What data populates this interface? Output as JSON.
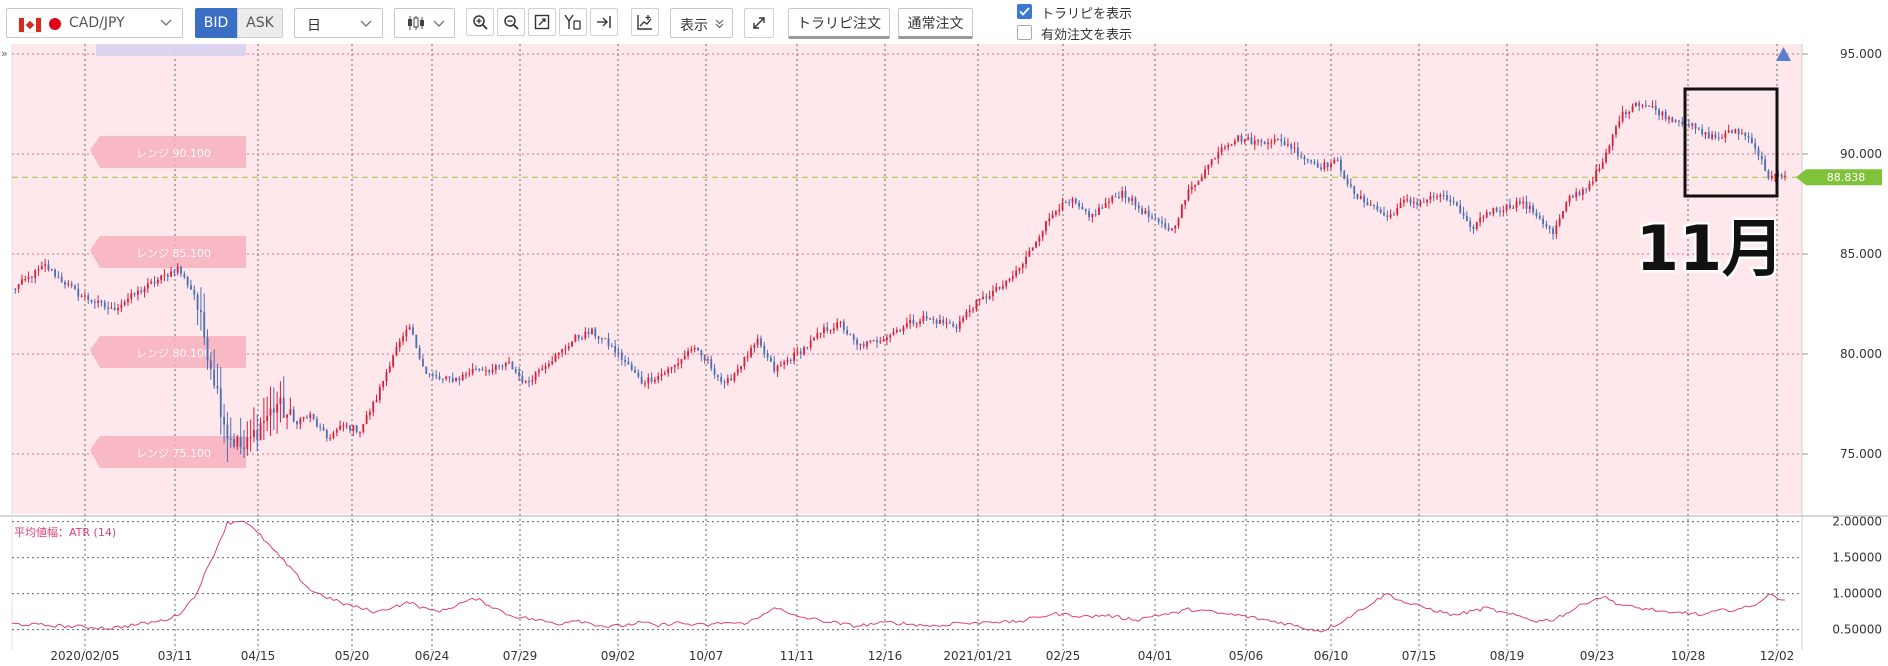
{
  "toolbar": {
    "pair": "CAD/JPY",
    "bid_label": "BID",
    "ask_label": "ASK",
    "timeframe": "日",
    "display_label": "表示",
    "trailing_order_label": "トラリピ注文",
    "normal_order_label": "通常注文",
    "show_trailing_label": "トラリピを表示",
    "show_active_orders_label": "有効注文を表示",
    "show_trailing_checked": true,
    "show_active_orders_checked": false
  },
  "chart_data": {
    "type": "candlestick",
    "pair": "CAD/JPY",
    "timeframe": "daily",
    "current_price": "88.838",
    "ylim": [
      72.0,
      95.5
    ],
    "y_ticks": [
      "95.000",
      "90.000",
      "85.000",
      "80.000",
      "75.000"
    ],
    "x_ticks": [
      "2020/02/05",
      "03/11",
      "04/15",
      "05/20",
      "06/24",
      "07/29",
      "09/02",
      "10/07",
      "11/11",
      "12/16",
      "2021/01/21",
      "02/25",
      "04/01",
      "05/06",
      "06/10",
      "07/15",
      "08/19",
      "09/23",
      "10/28",
      "12/02"
    ],
    "range_zone_labels": [
      "レンジ 90.100",
      "レンジ 85.100",
      "レンジ 80.100",
      "レンジ 75.100"
    ],
    "annotation": "11月",
    "weekly_anchors": [
      [
        0,
        83.2
      ],
      [
        2,
        84.4
      ],
      [
        4,
        83.0
      ],
      [
        6,
        82.2
      ],
      [
        8,
        83.3
      ],
      [
        10,
        84.3
      ],
      [
        11,
        83.0
      ],
      [
        12,
        79.5
      ],
      [
        13,
        76.0
      ],
      [
        14,
        75.2
      ],
      [
        15,
        76.5
      ],
      [
        16,
        77.5
      ],
      [
        17,
        76.6
      ],
      [
        18,
        76.9
      ],
      [
        19,
        75.8
      ],
      [
        20,
        76.4
      ],
      [
        21,
        76.2
      ],
      [
        22,
        77.8
      ],
      [
        23,
        80.0
      ],
      [
        24,
        81.3
      ],
      [
        25,
        79.0
      ],
      [
        26,
        78.7
      ],
      [
        27,
        78.8
      ],
      [
        28,
        79.3
      ],
      [
        29,
        79.2
      ],
      [
        30,
        79.5
      ],
      [
        31,
        78.5
      ],
      [
        32,
        79.4
      ],
      [
        33,
        80.0
      ],
      [
        34,
        80.8
      ],
      [
        35,
        81.1
      ],
      [
        36,
        80.5
      ],
      [
        37,
        79.6
      ],
      [
        38,
        78.6
      ],
      [
        39,
        78.9
      ],
      [
        40,
        79.4
      ],
      [
        41,
        80.3
      ],
      [
        42,
        79.6
      ],
      [
        43,
        78.4
      ],
      [
        44,
        79.5
      ],
      [
        45,
        80.6
      ],
      [
        46,
        79.2
      ],
      [
        47,
        79.8
      ],
      [
        48,
        80.4
      ],
      [
        49,
        81.2
      ],
      [
        50,
        81.5
      ],
      [
        51,
        80.4
      ],
      [
        52,
        80.6
      ],
      [
        53,
        81.0
      ],
      [
        54,
        81.5
      ],
      [
        55,
        81.8
      ],
      [
        56,
        81.6
      ],
      [
        57,
        81.4
      ],
      [
        58,
        82.4
      ],
      [
        59,
        83.0
      ],
      [
        60,
        83.5
      ],
      [
        61,
        84.5
      ],
      [
        62,
        86.0
      ],
      [
        63,
        87.3
      ],
      [
        64,
        87.6
      ],
      [
        65,
        86.8
      ],
      [
        66,
        87.5
      ],
      [
        67,
        88.1
      ],
      [
        68,
        87.3
      ],
      [
        69,
        86.6
      ],
      [
        70,
        86.2
      ],
      [
        71,
        88.1
      ],
      [
        72,
        89.2
      ],
      [
        73,
        90.4
      ],
      [
        74,
        90.8
      ],
      [
        75,
        90.6
      ],
      [
        76,
        90.7
      ],
      [
        77,
        90.5
      ],
      [
        78,
        89.8
      ],
      [
        79,
        89.4
      ],
      [
        80,
        89.6
      ],
      [
        81,
        87.9
      ],
      [
        82,
        87.5
      ],
      [
        83,
        86.8
      ],
      [
        84,
        87.6
      ],
      [
        85,
        87.6
      ],
      [
        86,
        87.9
      ],
      [
        87,
        87.6
      ],
      [
        88,
        86.2
      ],
      [
        89,
        87.1
      ],
      [
        90,
        87.3
      ],
      [
        91,
        87.6
      ],
      [
        92,
        87.0
      ],
      [
        93,
        86.0
      ],
      [
        94,
        87.8
      ],
      [
        95,
        88.3
      ],
      [
        96,
        89.5
      ],
      [
        97,
        91.8
      ],
      [
        98,
        92.6
      ],
      [
        99,
        92.3
      ],
      [
        100,
        91.8
      ],
      [
        101,
        91.6
      ],
      [
        102,
        91.0
      ],
      [
        103,
        90.8
      ],
      [
        104,
        91.2
      ],
      [
        105,
        90.7
      ],
      [
        106,
        88.9
      ],
      [
        107,
        88.8
      ]
    ],
    "indicator": {
      "name": "平均値幅：ATR (14)",
      "ylim": [
        0.3,
        2.05
      ],
      "y_ticks": [
        "2.00000",
        "1.50000",
        "1.00000",
        "0.50000"
      ],
      "weekly_values": [
        [
          0,
          0.58
        ],
        [
          3,
          0.55
        ],
        [
          6,
          0.52
        ],
        [
          9,
          0.62
        ],
        [
          10,
          0.7
        ],
        [
          11,
          0.95
        ],
        [
          12,
          1.45
        ],
        [
          13,
          1.98
        ],
        [
          14,
          2.02
        ],
        [
          15,
          1.8
        ],
        [
          16,
          1.55
        ],
        [
          17,
          1.3
        ],
        [
          18,
          1.05
        ],
        [
          19,
          0.95
        ],
        [
          20,
          0.86
        ],
        [
          21,
          0.8
        ],
        [
          22,
          0.74
        ],
        [
          23,
          0.82
        ],
        [
          24,
          0.88
        ],
        [
          25,
          0.78
        ],
        [
          26,
          0.76
        ],
        [
          27,
          0.86
        ],
        [
          28,
          0.93
        ],
        [
          29,
          0.82
        ],
        [
          30,
          0.7
        ],
        [
          31,
          0.66
        ],
        [
          32,
          0.62
        ],
        [
          33,
          0.58
        ],
        [
          34,
          0.64
        ],
        [
          35,
          0.58
        ],
        [
          36,
          0.54
        ],
        [
          37,
          0.56
        ],
        [
          38,
          0.6
        ],
        [
          39,
          0.55
        ],
        [
          40,
          0.6
        ],
        [
          41,
          0.57
        ],
        [
          42,
          0.56
        ],
        [
          43,
          0.6
        ],
        [
          44,
          0.58
        ],
        [
          45,
          0.65
        ],
        [
          46,
          0.82
        ],
        [
          47,
          0.7
        ],
        [
          48,
          0.66
        ],
        [
          49,
          0.62
        ],
        [
          50,
          0.58
        ],
        [
          51,
          0.55
        ],
        [
          52,
          0.58
        ],
        [
          53,
          0.6
        ],
        [
          54,
          0.58
        ],
        [
          55,
          0.56
        ],
        [
          56,
          0.55
        ],
        [
          57,
          0.6
        ],
        [
          58,
          0.58
        ],
        [
          59,
          0.62
        ],
        [
          60,
          0.6
        ],
        [
          61,
          0.62
        ],
        [
          62,
          0.68
        ],
        [
          63,
          0.72
        ],
        [
          64,
          0.7
        ],
        [
          65,
          0.68
        ],
        [
          66,
          0.7
        ],
        [
          67,
          0.66
        ],
        [
          68,
          0.64
        ],
        [
          69,
          0.7
        ],
        [
          70,
          0.72
        ],
        [
          71,
          0.78
        ],
        [
          72,
          0.76
        ],
        [
          73,
          0.72
        ],
        [
          74,
          0.7
        ],
        [
          75,
          0.66
        ],
        [
          76,
          0.62
        ],
        [
          77,
          0.58
        ],
        [
          78,
          0.52
        ],
        [
          79,
          0.48
        ],
        [
          80,
          0.58
        ],
        [
          81,
          0.72
        ],
        [
          82,
          0.86
        ],
        [
          83,
          1.0
        ],
        [
          84,
          0.88
        ],
        [
          85,
          0.82
        ],
        [
          86,
          0.76
        ],
        [
          87,
          0.7
        ],
        [
          88,
          0.75
        ],
        [
          89,
          0.8
        ],
        [
          90,
          0.73
        ],
        [
          91,
          0.68
        ],
        [
          92,
          0.62
        ],
        [
          93,
          0.64
        ],
        [
          94,
          0.75
        ],
        [
          95,
          0.88
        ],
        [
          96,
          0.96
        ],
        [
          97,
          0.85
        ],
        [
          98,
          0.8
        ],
        [
          99,
          0.78
        ],
        [
          100,
          0.72
        ],
        [
          101,
          0.74
        ],
        [
          102,
          0.7
        ],
        [
          103,
          0.76
        ],
        [
          104,
          0.78
        ],
        [
          105,
          0.82
        ],
        [
          106,
          0.98
        ],
        [
          107,
          0.92
        ]
      ]
    },
    "colors": {
      "up": "#d81e3c",
      "down": "#4a6fb5",
      "zone": "#ffe8ec",
      "atr": "#e0407a",
      "price_tag": "#7ec33a"
    }
  }
}
